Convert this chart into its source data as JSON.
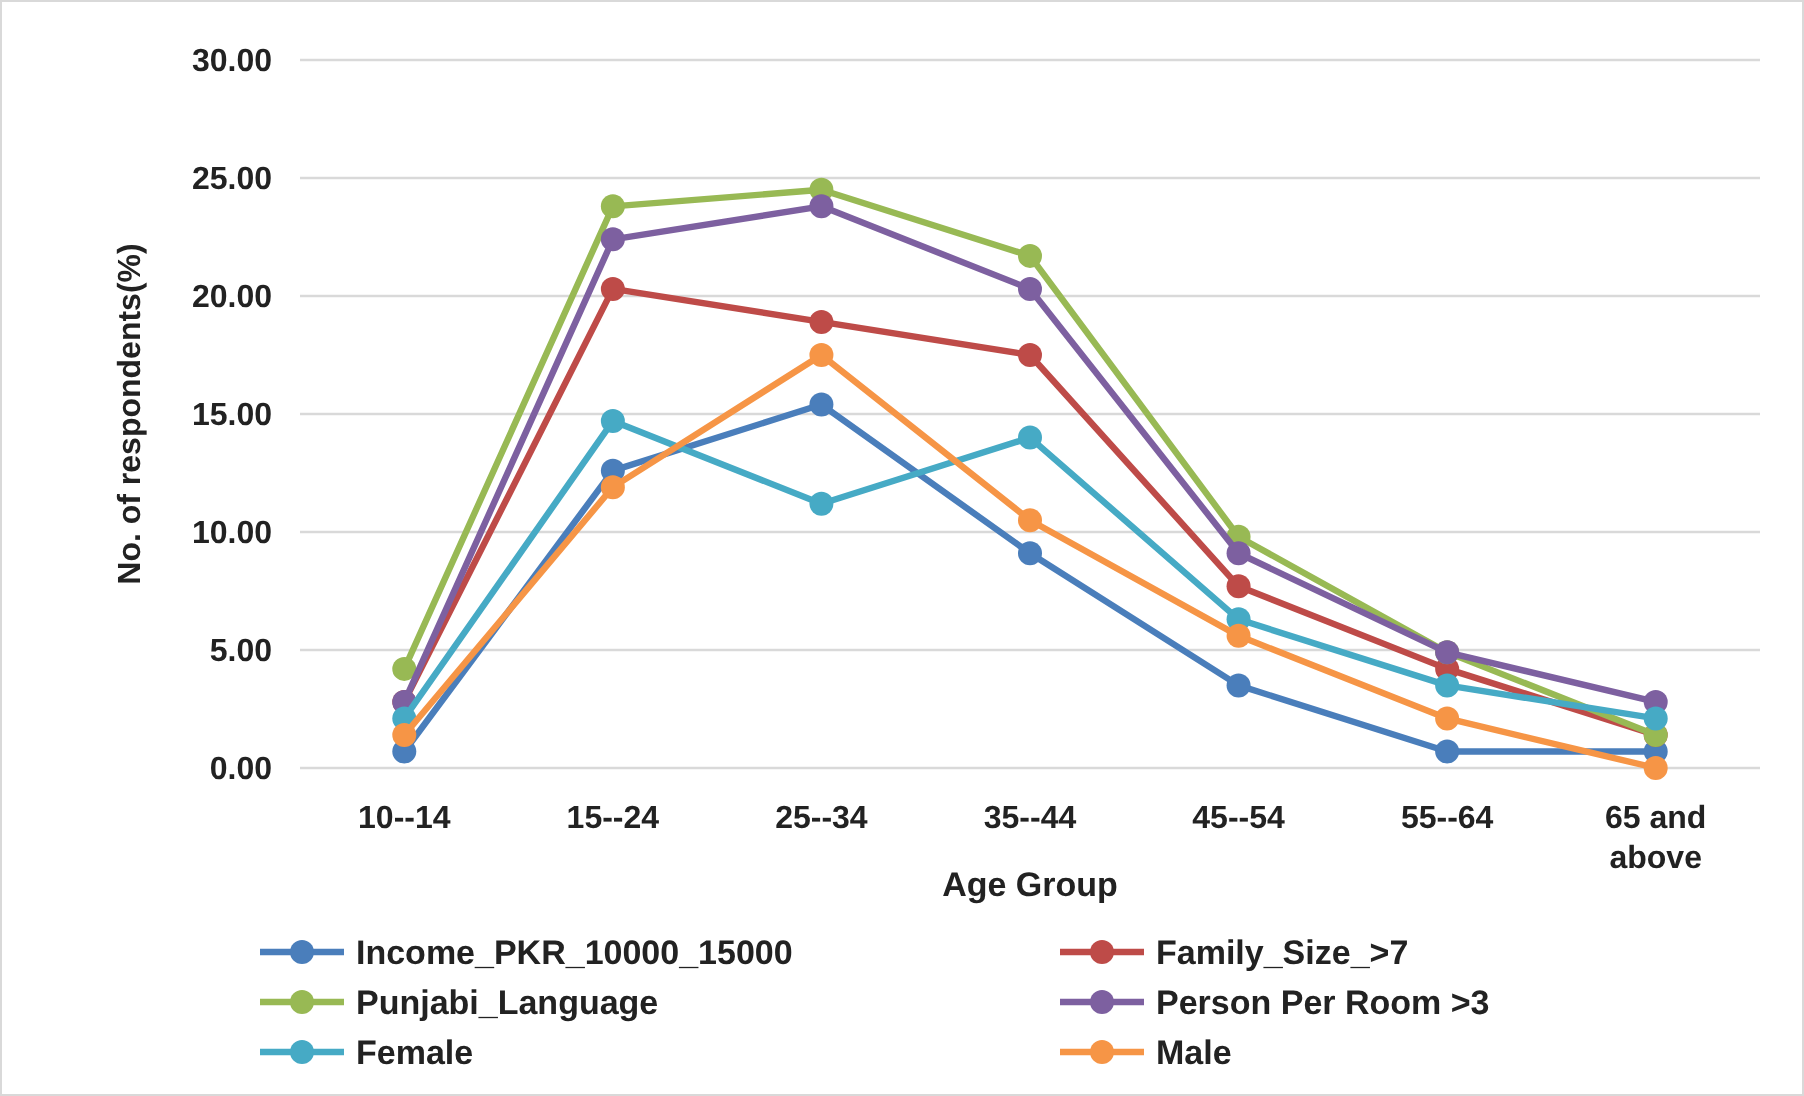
{
  "chart_data": {
    "type": "line",
    "xlabel": "Age Group",
    "ylabel": "No. of respondents(%)",
    "categories": [
      "10--14",
      "15--24",
      "25--34",
      "35--44",
      "45--54",
      "55--64",
      "65 and above"
    ],
    "series": [
      {
        "name": "Income_PKR_10000_15000",
        "color": "#4a7ebb",
        "values": [
          0.7,
          12.6,
          15.4,
          9.1,
          3.5,
          0.7,
          0.7
        ]
      },
      {
        "name": "Family_Size_>7",
        "color": "#be4b48",
        "values": [
          2.8,
          20.3,
          18.9,
          17.5,
          7.7,
          4.2,
          1.4
        ]
      },
      {
        "name": "Punjabi_Language",
        "color": "#98b954",
        "values": [
          4.2,
          23.8,
          24.5,
          21.7,
          9.8,
          4.9,
          1.4
        ]
      },
      {
        "name": "Person Per Room >3",
        "color": "#7d60a0",
        "values": [
          2.8,
          22.4,
          23.8,
          20.3,
          9.1,
          4.9,
          2.8
        ]
      },
      {
        "name": "Female",
        "color": "#46aac5",
        "values": [
          2.1,
          14.7,
          11.2,
          14.0,
          6.3,
          3.5,
          2.1
        ]
      },
      {
        "name": "Male",
        "color": "#f69546",
        "values": [
          1.4,
          11.9,
          17.5,
          10.5,
          5.6,
          2.1,
          0.0
        ]
      }
    ],
    "ylim": [
      0,
      30
    ],
    "yticks": [
      {
        "value": 0,
        "label": "0.00"
      },
      {
        "value": 5,
        "label": "5.00"
      },
      {
        "value": 10,
        "label": "10.00"
      },
      {
        "value": 15,
        "label": "15.00"
      },
      {
        "value": 20,
        "label": "20.00"
      },
      {
        "value": 25,
        "label": "25.00"
      },
      {
        "value": 30,
        "label": "30.00"
      }
    ],
    "grid": "y",
    "legend": "bottom",
    "marker": "circle",
    "line_style": "solid"
  }
}
